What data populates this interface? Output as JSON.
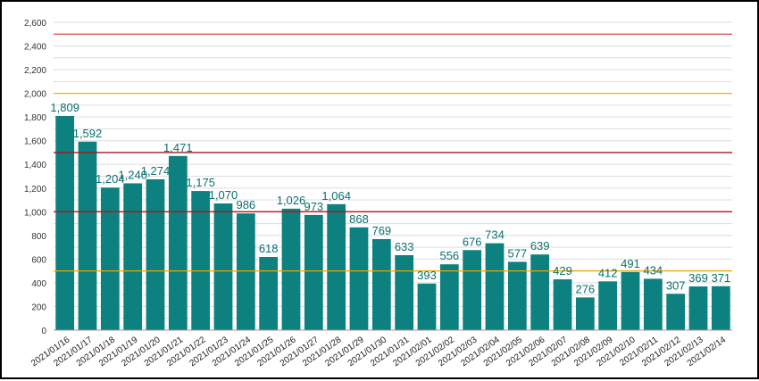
{
  "chart_data": {
    "type": "bar",
    "categories": [
      "2021/01/16",
      "2021/01/17",
      "2021/01/18",
      "2021/01/19",
      "2021/01/20",
      "2021/01/21",
      "2021/01/22",
      "2021/01/23",
      "2021/01/24",
      "2021/01/25",
      "2021/01/26",
      "2021/01/27",
      "2021/01/28",
      "2021/01/29",
      "2021/01/30",
      "2021/01/31",
      "2021/02/01",
      "2021/02/02",
      "2021/02/03",
      "2021/02/04",
      "2021/02/05",
      "2021/02/06",
      "2021/02/07",
      "2021/02/08",
      "2021/02/09",
      "2021/02/10",
      "2021/02/11",
      "2021/02/12",
      "2021/02/13",
      "2021/02/14"
    ],
    "values": [
      1809,
      1592,
      1204,
      1240,
      1274,
      1471,
      1175,
      1070,
      986,
      618,
      1026,
      973,
      1064,
      868,
      769,
      633,
      393,
      556,
      676,
      734,
      577,
      639,
      429,
      276,
      412,
      491,
      434,
      307,
      369,
      371
    ],
    "value_labels": [
      "1,809",
      "1,592",
      "1,204",
      "1,240",
      "1,274",
      "1,471",
      "1,175",
      "1,070",
      "986",
      "618",
      "1,026",
      "973",
      "1,064",
      "868",
      "769",
      "633",
      "393",
      "556",
      "676",
      "734",
      "577",
      "639",
      "429",
      "276",
      "412",
      "491",
      "434",
      "307",
      "369",
      "371"
    ],
    "yticks": [
      0,
      200,
      400,
      600,
      800,
      1000,
      1200,
      1400,
      1600,
      1800,
      2000,
      2200,
      2400,
      2600
    ],
    "ytick_labels": [
      "0",
      "200",
      "400",
      "600",
      "800",
      "1,000",
      "1,200",
      "1,400",
      "1,600",
      "1,800",
      "2,000",
      "2,200",
      "2,400",
      "2,600"
    ],
    "ylim": [
      0,
      2600
    ],
    "reference_lines": [
      {
        "value": 2500,
        "color": "#d9534f"
      },
      {
        "value": 2000,
        "color": "#f0b400"
      },
      {
        "value": 1500,
        "color": "#a31818"
      },
      {
        "value": 1000,
        "color": "#c01010"
      },
      {
        "value": 500,
        "color": "#e8a800"
      }
    ],
    "bar_color": "#0d8080",
    "label_color": "#0c6f6f",
    "grid": true,
    "title": "",
    "xlabel": "",
    "ylabel": ""
  }
}
